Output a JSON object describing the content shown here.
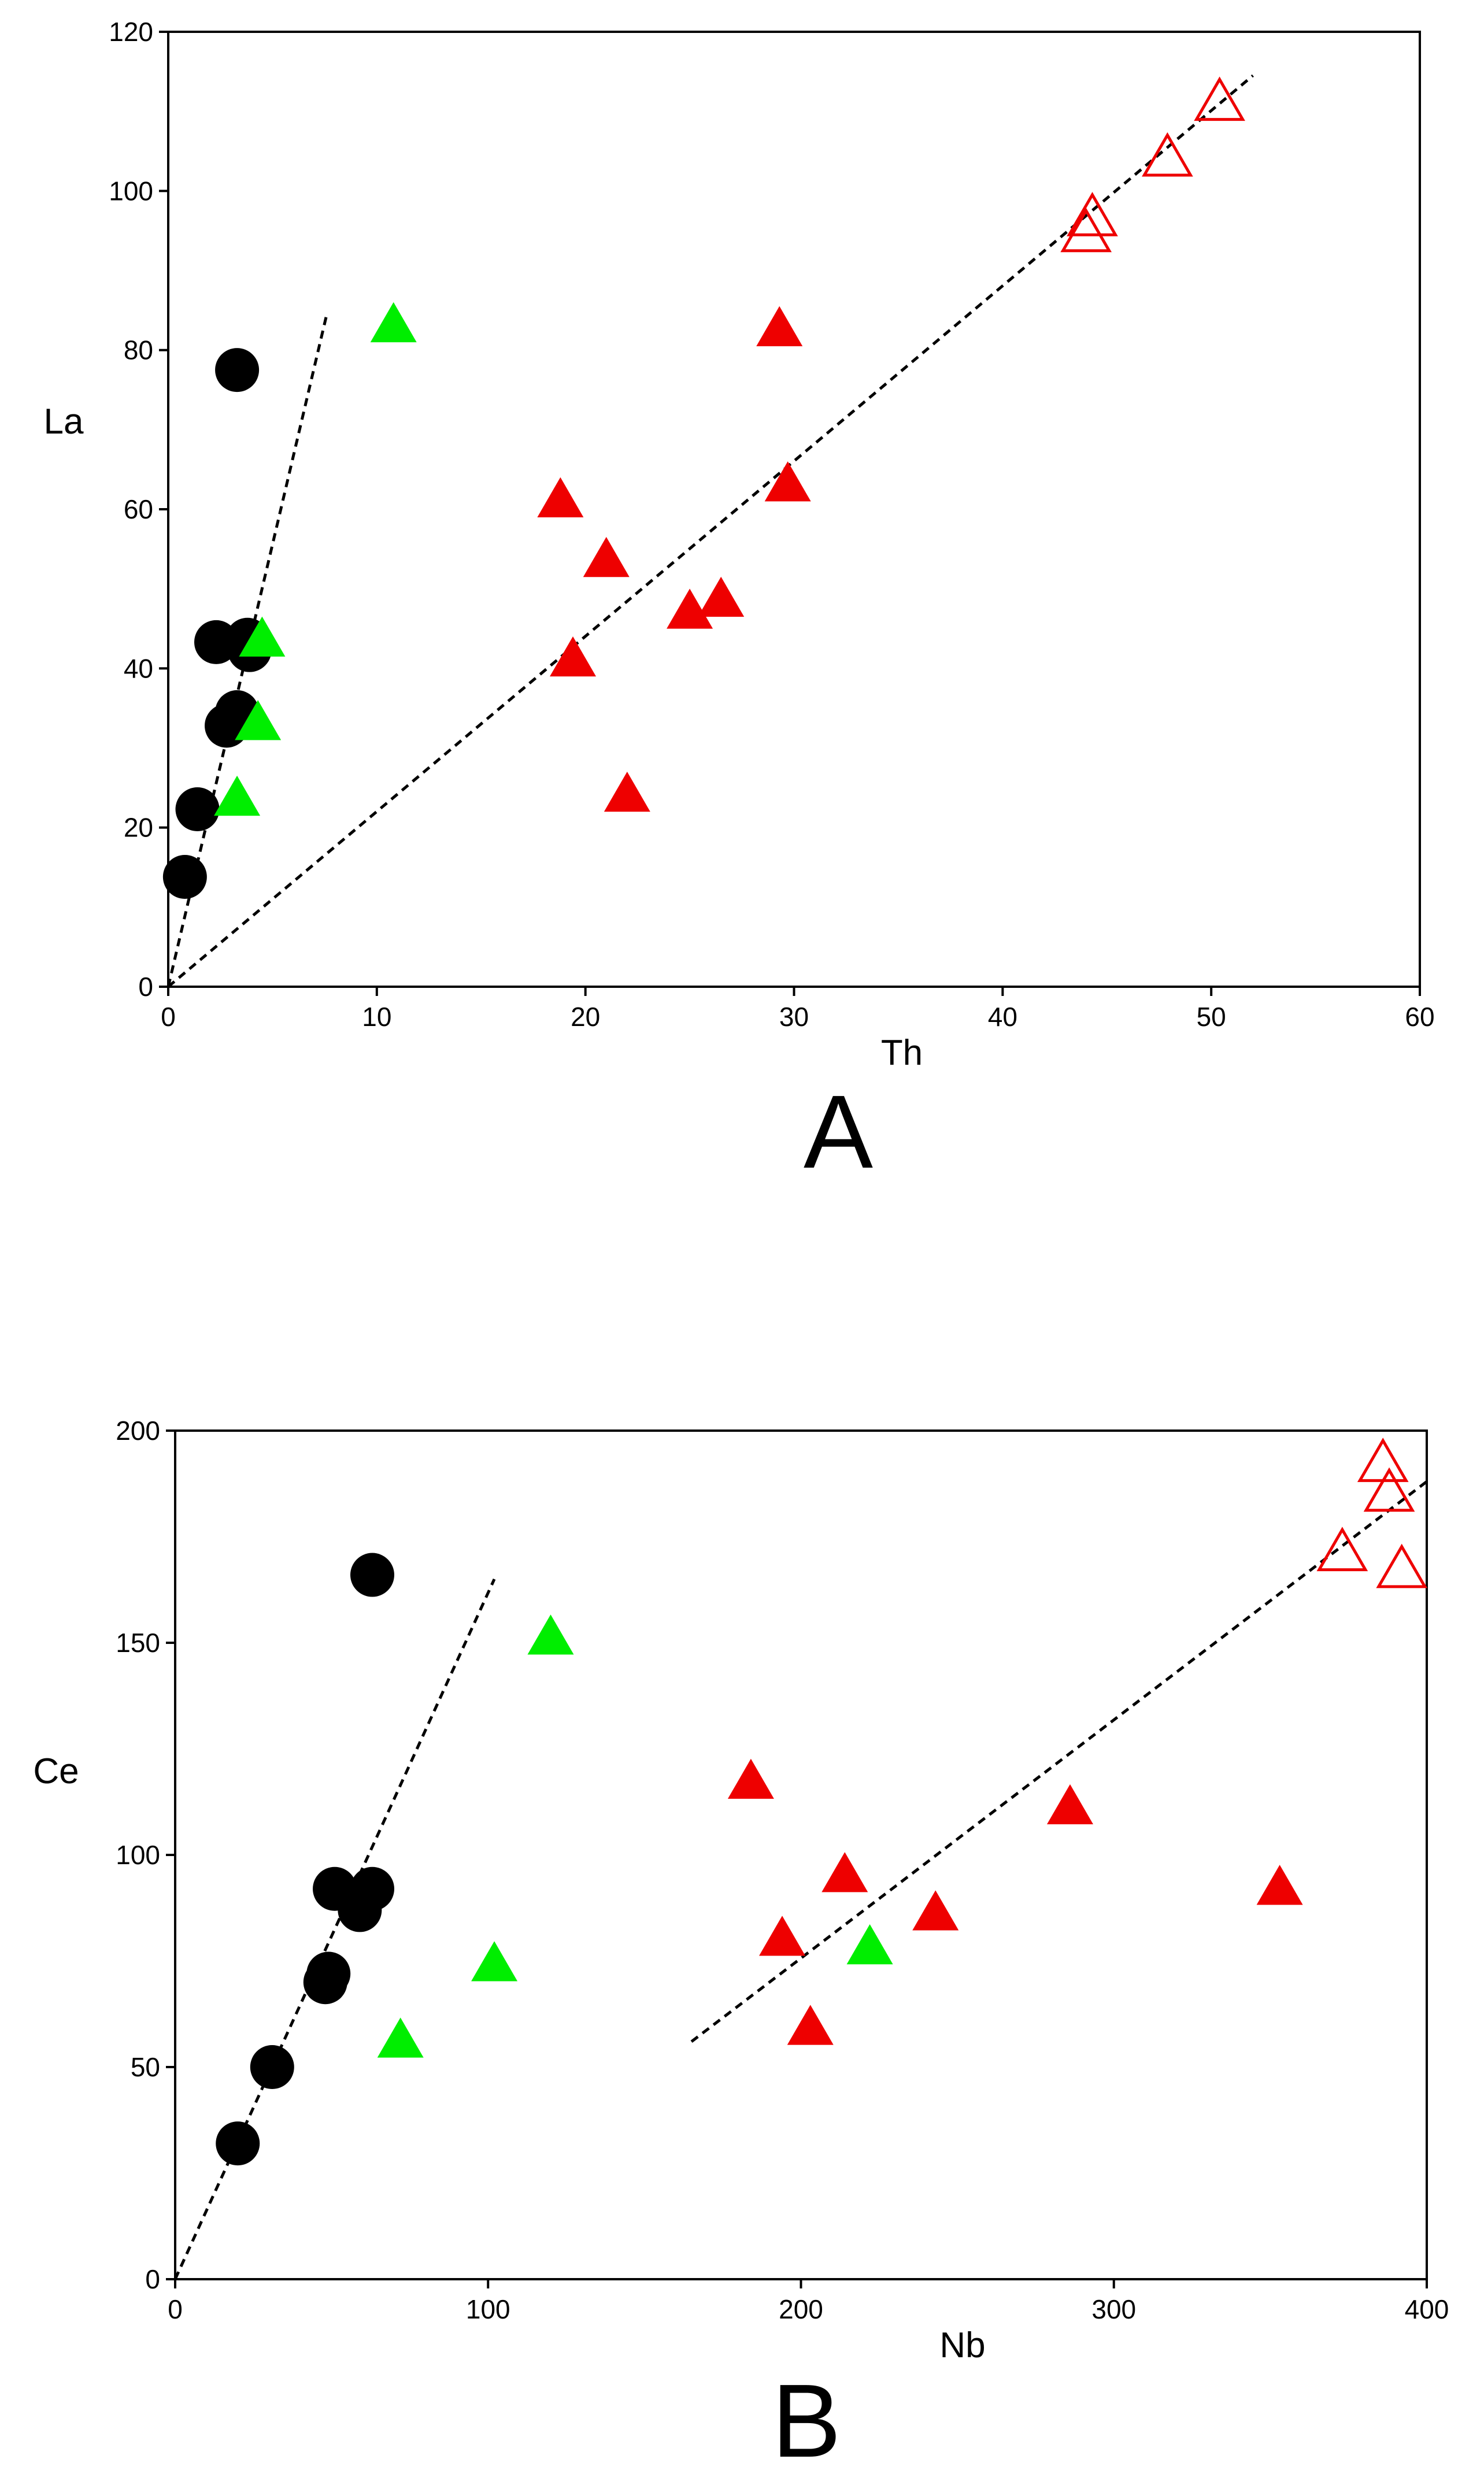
{
  "colors": {
    "black_group": "#000000",
    "green_group": "#00ee00",
    "red_filled": "#ee0000",
    "red_open": "#ee0000",
    "axis": "#000000",
    "trend": "#000000"
  },
  "chart_data": [
    {
      "type": "scatter",
      "panel_label": "A",
      "xlabel": "Th",
      "ylabel": "La",
      "xlim": [
        0,
        60
      ],
      "ylim": [
        0,
        120
      ],
      "xticks": [
        0,
        10,
        20,
        30,
        40,
        50,
        60
      ],
      "yticks": [
        0,
        20,
        40,
        60,
        80,
        100,
        120
      ],
      "grid": false,
      "series": [
        {
          "marker": "filled-circle",
          "color": "#000000",
          "points": [
            {
              "x": 3.3,
              "y": 77.5
            },
            {
              "x": 2.3,
              "y": 43.3
            },
            {
              "x": 3.8,
              "y": 43.6
            },
            {
              "x": 3.9,
              "y": 42.3
            },
            {
              "x": 3.3,
              "y": 34.5
            },
            {
              "x": 2.8,
              "y": 32.8
            },
            {
              "x": 1.4,
              "y": 22.3
            },
            {
              "x": 0.8,
              "y": 13.8
            }
          ]
        },
        {
          "marker": "filled-triangle",
          "color": "#00ee00",
          "points": [
            {
              "x": 10.8,
              "y": 83.0
            },
            {
              "x": 4.5,
              "y": 43.5
            },
            {
              "x": 4.3,
              "y": 33.0
            },
            {
              "x": 3.3,
              "y": 23.5
            }
          ]
        },
        {
          "marker": "filled-triangle",
          "color": "#ee0000",
          "points": [
            {
              "x": 29.3,
              "y": 82.5
            },
            {
              "x": 29.7,
              "y": 63.0
            },
            {
              "x": 18.8,
              "y": 61.0
            },
            {
              "x": 21.0,
              "y": 53.5
            },
            {
              "x": 26.5,
              "y": 48.5
            },
            {
              "x": 25.0,
              "y": 47.0
            },
            {
              "x": 19.4,
              "y": 41.0
            },
            {
              "x": 22.0,
              "y": 24.0
            }
          ]
        },
        {
          "marker": "open-triangle",
          "color": "#ee0000",
          "points": [
            {
              "x": 50.4,
              "y": 111.0
            },
            {
              "x": 47.9,
              "y": 104.0
            },
            {
              "x": 44.3,
              "y": 96.5
            },
            {
              "x": 44.0,
              "y": 94.5
            }
          ]
        }
      ],
      "trend_lines": [
        {
          "from": [
            0,
            0
          ],
          "to": [
            7.6,
            84.5
          ]
        },
        {
          "from": [
            0,
            0
          ],
          "to": [
            52.0,
            114.5
          ]
        }
      ]
    },
    {
      "type": "scatter",
      "panel_label": "B",
      "xlabel": "Nb",
      "ylabel": "Ce",
      "xlim": [
        0,
        400
      ],
      "ylim": [
        0,
        200
      ],
      "xticks": [
        0,
        100,
        200,
        300,
        400
      ],
      "yticks": [
        0,
        50,
        100,
        150,
        200
      ],
      "grid": false,
      "series": [
        {
          "marker": "filled-circle",
          "color": "#000000",
          "points": [
            {
              "x": 63,
              "y": 166
            },
            {
              "x": 51,
              "y": 92
            },
            {
              "x": 63,
              "y": 92
            },
            {
              "x": 59,
              "y": 87
            },
            {
              "x": 49,
              "y": 72
            },
            {
              "x": 48,
              "y": 70
            },
            {
              "x": 31,
              "y": 50
            },
            {
              "x": 20,
              "y": 32
            }
          ]
        },
        {
          "marker": "filled-triangle",
          "color": "#00ee00",
          "points": [
            {
              "x": 120,
              "y": 151
            },
            {
              "x": 102,
              "y": 74
            },
            {
              "x": 222,
              "y": 78
            },
            {
              "x": 72,
              "y": 56
            }
          ]
        },
        {
          "marker": "filled-triangle",
          "color": "#ee0000",
          "points": [
            {
              "x": 184,
              "y": 117
            },
            {
              "x": 286,
              "y": 111
            },
            {
              "x": 214,
              "y": 95
            },
            {
              "x": 353,
              "y": 92
            },
            {
              "x": 243,
              "y": 86
            },
            {
              "x": 194,
              "y": 80
            },
            {
              "x": 203,
              "y": 59
            }
          ]
        },
        {
          "marker": "open-triangle",
          "color": "#ee0000",
          "points": [
            {
              "x": 386,
              "y": 192
            },
            {
              "x": 388,
              "y": 185
            },
            {
              "x": 373,
              "y": 171
            },
            {
              "x": 392,
              "y": 167
            }
          ]
        }
      ],
      "trend_lines": [
        {
          "from": [
            0,
            0
          ],
          "to": [
            102,
            165
          ]
        },
        {
          "from": [
            165,
            56
          ],
          "to": [
            400,
            188
          ]
        }
      ]
    }
  ]
}
